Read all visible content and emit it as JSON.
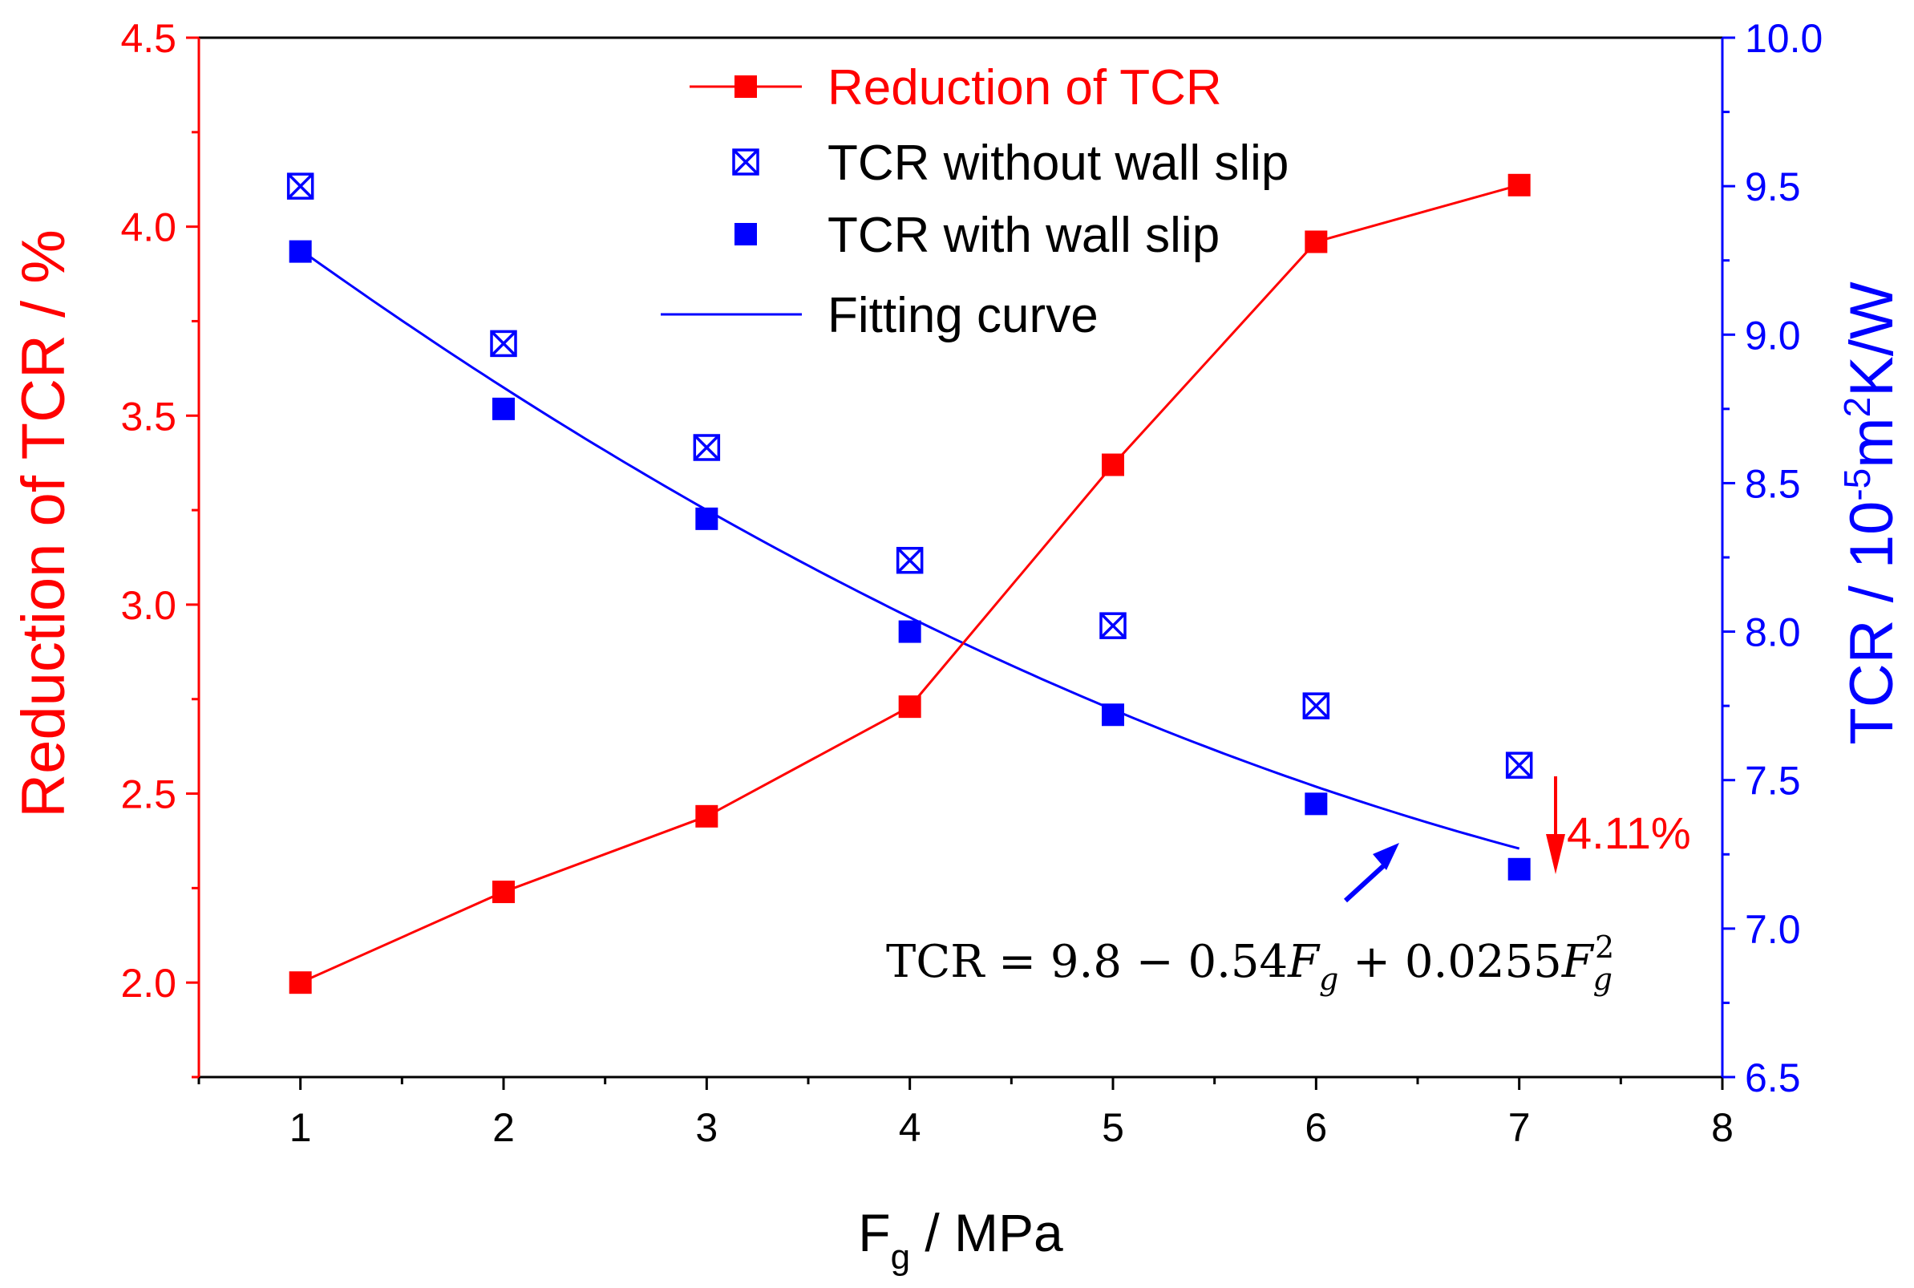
{
  "chart_data": {
    "type": "line",
    "x": [
      1,
      2,
      3,
      4,
      5,
      6,
      7
    ],
    "xlabel": "F",
    "xlabel_sub": "g",
    "xlabel_unit": " / MPa",
    "xlim": [
      0.5,
      8
    ],
    "xticks": [
      1,
      2,
      3,
      4,
      5,
      6,
      7,
      8
    ],
    "ylabel_left": "Reduction of TCR / %",
    "ylim_left": [
      1.75,
      4.5
    ],
    "yticks_left": [
      2.0,
      2.5,
      3.0,
      3.5,
      4.0,
      4.5
    ],
    "ylabel_right": {
      "prefix": "TCR / 10",
      "exp1": "-5",
      "mid": "m",
      "exp2": "2",
      "suffix": "K/W"
    },
    "ylim_right": [
      6.5,
      10.0
    ],
    "yticks_right": [
      6.5,
      7.0,
      7.5,
      8.0,
      8.5,
      9.0,
      9.5,
      10.0
    ],
    "series": [
      {
        "name": "Reduction of TCR",
        "axis": "left",
        "style": "line-square",
        "color": "#ff0000",
        "values": [
          2.0,
          2.24,
          2.44,
          2.73,
          3.37,
          3.96,
          4.11
        ]
      },
      {
        "name": "TCR without wall slip",
        "axis": "right",
        "style": "boxed-x",
        "color": "#0000ff",
        "values": [
          9.5,
          8.97,
          8.62,
          8.24,
          8.02,
          7.75,
          7.55
        ]
      },
      {
        "name": "TCR with wall slip",
        "axis": "right",
        "style": "square",
        "color": "#0000ff",
        "values": [
          9.28,
          8.75,
          8.38,
          8.0,
          7.72,
          7.42,
          7.2
        ]
      },
      {
        "name": "Fitting curve",
        "axis": "right",
        "style": "curve",
        "color": "#0000ff",
        "coefficients": [
          9.8,
          -0.54,
          0.0255
        ]
      }
    ],
    "annotations": {
      "reduction_label": "4.11%",
      "equation": {
        "lhs": "TCR = 9.8 − 0.54",
        "var1": "F",
        "sub1": "g",
        "mid": " + 0.0255",
        "var2": "F",
        "sub2": "g",
        "sup2": "2"
      }
    }
  }
}
